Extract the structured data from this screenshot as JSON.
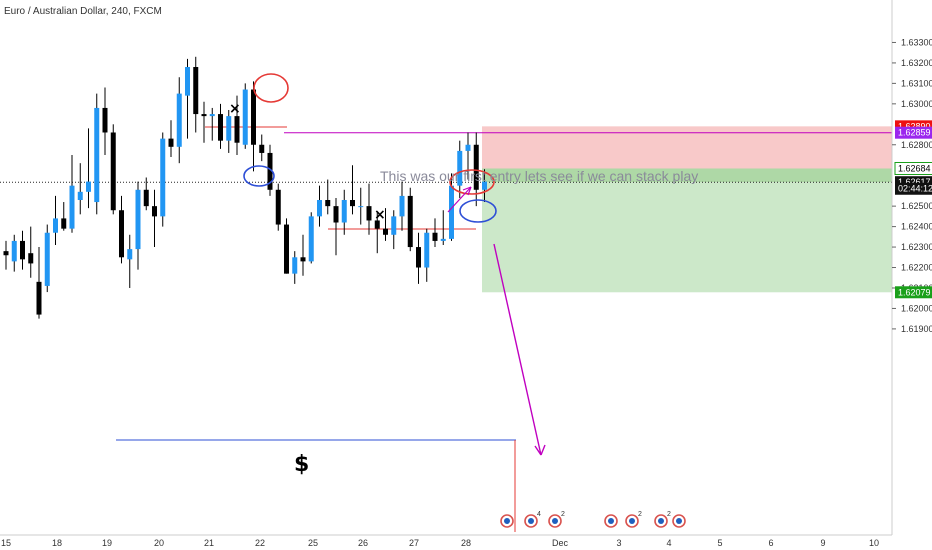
{
  "title": "Euro / Australian Dollar, 240, FXCM",
  "annotation_text": "This was our first entry lets see if we can stack play",
  "dollar_label": "$",
  "cross_marks": [
    "×",
    "×"
  ],
  "colors": {
    "up": "#2196f3",
    "down": "#000000",
    "stop_zone": "#f8c9c9",
    "target_zone": "#cce8c9",
    "entry_zone": "#aed8a6",
    "red_line": "#e53935",
    "magenta_line": "#c000c0",
    "blue_line": "#2e4fd6",
    "green_tag": "#1aa01a",
    "red_tag": "#ee1111",
    "purple_tag": "#9b27ee"
  },
  "event_badges": [
    {
      "date": "Nov 29",
      "count": ""
    },
    {
      "date": "Nov 30",
      "count": "4"
    },
    {
      "date": "Nov 30",
      "count": "2"
    },
    {
      "date": "Dec 3",
      "count": ""
    },
    {
      "date": "Dec 3",
      "count": "2"
    },
    {
      "date": "Dec 4",
      "count": "2"
    },
    {
      "date": "Dec 4",
      "count": ""
    }
  ],
  "price_tags": [
    {
      "label": "1.62890",
      "value": 1.6289,
      "style": "red"
    },
    {
      "label": "1.62859",
      "value": 1.62859,
      "style": "purple"
    },
    {
      "label": "1.62684",
      "value": 1.62684,
      "style": "outline"
    },
    {
      "label": "1.62617",
      "value": 1.62617,
      "style": "dark"
    },
    {
      "label": "02:44:12",
      "value": 1.62585,
      "style": "dark"
    },
    {
      "label": "1.62079",
      "value": 1.62079,
      "style": "green"
    }
  ],
  "chart_data": {
    "type": "candlestick",
    "title": "Euro / Australian Dollar, 240, FXCM",
    "x_tick_labels": [
      "15",
      "18",
      "19",
      "20",
      "21",
      "22",
      "25",
      "26",
      "27",
      "28",
      "Dec",
      "3",
      "4",
      "5",
      "6",
      "9",
      "10"
    ],
    "y_tick_labels": [
      "1.63300",
      "1.63200",
      "1.63100",
      "1.63000",
      "1.62800",
      "1.62500",
      "1.62400",
      "1.62300",
      "1.62200",
      "1.62100",
      "1.62000",
      "1.61900"
    ],
    "ylim": [
      1.6185,
      1.6345
    ],
    "current_price": 1.62617,
    "countdown": "02:44:12",
    "candles": [
      [
        1.6228,
        1.6233,
        1.6219,
        1.6226
      ],
      [
        1.6223,
        1.6236,
        1.6218,
        1.6233
      ],
      [
        1.6233,
        1.6238,
        1.6219,
        1.6224
      ],
      [
        1.6227,
        1.624,
        1.6215,
        1.6222
      ],
      [
        1.6213,
        1.623,
        1.6195,
        1.6197
      ],
      [
        1.6211,
        1.6241,
        1.6208,
        1.6237
      ],
      [
        1.6237,
        1.6255,
        1.6231,
        1.6244
      ],
      [
        1.6244,
        1.6252,
        1.6238,
        1.6239
      ],
      [
        1.6239,
        1.6275,
        1.6237,
        1.626
      ],
      [
        1.6253,
        1.6271,
        1.6246,
        1.6257
      ],
      [
        1.6257,
        1.6288,
        1.6249,
        1.6262
      ],
      [
        1.6252,
        1.6305,
        1.6246,
        1.6298
      ],
      [
        1.6298,
        1.6308,
        1.6275,
        1.6286
      ],
      [
        1.6286,
        1.629,
        1.6246,
        1.6248
      ],
      [
        1.6248,
        1.6255,
        1.6222,
        1.6225
      ],
      [
        1.6224,
        1.6236,
        1.621,
        1.6229
      ],
      [
        1.6229,
        1.6262,
        1.6219,
        1.6258
      ],
      [
        1.6258,
        1.6264,
        1.6248,
        1.625
      ],
      [
        1.625,
        1.6258,
        1.623,
        1.6245
      ],
      [
        1.6245,
        1.6286,
        1.624,
        1.6283
      ],
      [
        1.6283,
        1.6292,
        1.6274,
        1.6279
      ],
      [
        1.6279,
        1.6313,
        1.6271,
        1.6305
      ],
      [
        1.6304,
        1.6322,
        1.6283,
        1.6318
      ],
      [
        1.6318,
        1.6323,
        1.6286,
        1.6295
      ],
      [
        1.6295,
        1.6301,
        1.6281,
        1.6294
      ],
      [
        1.6294,
        1.6298,
        1.6282,
        1.6295
      ],
      [
        1.6295,
        1.63,
        1.6278,
        1.6282
      ],
      [
        1.6282,
        1.6297,
        1.6276,
        1.6294
      ],
      [
        1.6294,
        1.6304,
        1.6275,
        1.6281
      ],
      [
        1.628,
        1.631,
        1.6278,
        1.6307
      ],
      [
        1.6307,
        1.6311,
        1.6267,
        1.628
      ],
      [
        1.628,
        1.6285,
        1.6272,
        1.6276
      ],
      [
        1.6276,
        1.628,
        1.6255,
        1.6258
      ],
      [
        1.6258,
        1.6261,
        1.6238,
        1.6241
      ],
      [
        1.6241,
        1.6244,
        1.6217,
        1.6217
      ],
      [
        1.6217,
        1.6228,
        1.6212,
        1.6225
      ],
      [
        1.6225,
        1.6236,
        1.6216,
        1.6223
      ],
      [
        1.6223,
        1.6247,
        1.6222,
        1.6245
      ],
      [
        1.6245,
        1.626,
        1.624,
        1.6253
      ],
      [
        1.6253,
        1.6263,
        1.6246,
        1.625
      ],
      [
        1.625,
        1.6254,
        1.6226,
        1.6242
      ],
      [
        1.6242,
        1.6258,
        1.6236,
        1.6253
      ],
      [
        1.6253,
        1.627,
        1.6246,
        1.625
      ],
      [
        1.625,
        1.6259,
        1.6241,
        1.625
      ],
      [
        1.625,
        1.6261,
        1.6236,
        1.6243
      ],
      [
        1.6243,
        1.6247,
        1.6227,
        1.6239
      ],
      [
        1.6239,
        1.6249,
        1.6233,
        1.6236
      ],
      [
        1.6236,
        1.6248,
        1.6229,
        1.6245
      ],
      [
        1.6245,
        1.6262,
        1.6238,
        1.6255
      ],
      [
        1.6255,
        1.6259,
        1.6228,
        1.623
      ],
      [
        1.623,
        1.6237,
        1.6212,
        1.622
      ],
      [
        1.622,
        1.6239,
        1.6213,
        1.6237
      ],
      [
        1.6237,
        1.6244,
        1.623,
        1.6233
      ],
      [
        1.6233,
        1.6248,
        1.6231,
        1.6234
      ],
      [
        1.6234,
        1.6266,
        1.6233,
        1.626
      ],
      [
        1.626,
        1.6282,
        1.6254,
        1.6277
      ],
      [
        1.6277,
        1.6286,
        1.6263,
        1.628
      ],
      [
        1.628,
        1.6286,
        1.625,
        1.6258
      ],
      [
        1.6258,
        1.6268,
        1.6252,
        1.6262
      ]
    ]
  }
}
